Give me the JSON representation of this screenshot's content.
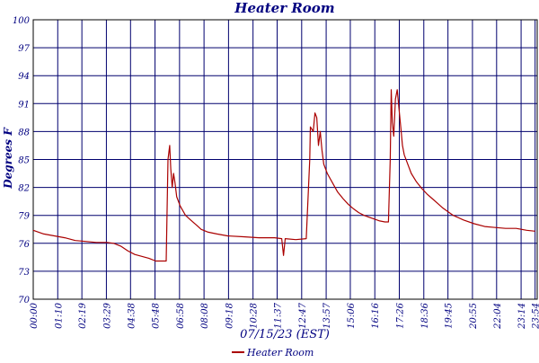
{
  "chart_data": {
    "type": "line",
    "title": "Heater Room",
    "xlabel": "07/15/23 (EST)",
    "ylabel": "Degrees F",
    "ylim": [
      70,
      100
    ],
    "y_ticks": [
      "70",
      "73",
      "76",
      "79",
      "82",
      "85",
      "88",
      "91",
      "94",
      "97",
      "100"
    ],
    "y_tick_values": [
      70,
      73,
      76,
      79,
      82,
      85,
      88,
      91,
      94,
      97,
      100
    ],
    "x_range_hours": [
      0,
      24
    ],
    "x_ticks": [
      "00:00",
      "01:10",
      "02:19",
      "03:29",
      "04:38",
      "05:48",
      "06:58",
      "08:08",
      "09:18",
      "10:28",
      "11:37",
      "12:47",
      "13:57",
      "15:06",
      "16:16",
      "17:26",
      "18:36",
      "19:45",
      "20:55",
      "22:04",
      "23:14",
      "23:54"
    ],
    "grid": true,
    "legend": "bottom-center",
    "colors": {
      "series": "#aa0000",
      "grid": "#00006e",
      "text": "#000080",
      "axis": "#000000"
    },
    "series": [
      {
        "name": "Heater Room",
        "x": [
          "00:00",
          "00:30",
          "01:00",
          "01:30",
          "02:00",
          "02:30",
          "03:00",
          "03:30",
          "03:50",
          "04:10",
          "04:30",
          "04:50",
          "05:10",
          "05:30",
          "05:50",
          "06:20",
          "06:25",
          "06:30",
          "06:33",
          "06:37",
          "06:41",
          "06:45",
          "06:50",
          "07:00",
          "07:15",
          "07:30",
          "07:45",
          "08:00",
          "08:20",
          "08:45",
          "09:15",
          "10:00",
          "10:45",
          "11:30",
          "11:50",
          "11:55",
          "12:00",
          "12:30",
          "13:00",
          "13:10",
          "13:12",
          "13:20",
          "13:25",
          "13:30",
          "13:35",
          "13:40",
          "13:45",
          "13:50",
          "14:00",
          "14:15",
          "14:30",
          "14:45",
          "15:00",
          "15:15",
          "15:30",
          "15:45",
          "16:00",
          "16:15",
          "16:30",
          "16:45",
          "16:55",
          "17:00",
          "17:03",
          "17:06",
          "17:10",
          "17:15",
          "17:20",
          "17:25",
          "17:30",
          "17:35",
          "17:40",
          "17:50",
          "18:00",
          "18:15",
          "18:30",
          "18:45",
          "19:00",
          "19:15",
          "19:30",
          "19:45",
          "20:00",
          "20:30",
          "21:00",
          "21:30",
          "22:00",
          "22:30",
          "23:00",
          "23:30",
          "23:54"
        ],
        "y": [
          77.4,
          77.0,
          76.8,
          76.6,
          76.3,
          76.2,
          76.1,
          76.1,
          76.0,
          75.7,
          75.2,
          74.8,
          74.6,
          74.4,
          74.1,
          74.1,
          85.0,
          86.5,
          84.0,
          82.0,
          83.5,
          82.5,
          81.0,
          80.0,
          79.0,
          78.5,
          78.0,
          77.5,
          77.2,
          77.0,
          76.8,
          76.7,
          76.6,
          76.6,
          76.5,
          74.7,
          76.5,
          76.4,
          76.5,
          85.0,
          88.5,
          88.0,
          90.0,
          89.5,
          86.5,
          88.0,
          86.0,
          84.5,
          83.5,
          82.5,
          81.5,
          80.8,
          80.2,
          79.7,
          79.3,
          79.0,
          78.8,
          78.6,
          78.4,
          78.3,
          78.3,
          85.0,
          92.5,
          89.0,
          87.5,
          91.5,
          92.5,
          90.5,
          88.5,
          86.5,
          85.5,
          84.5,
          83.5,
          82.6,
          81.9,
          81.3,
          80.8,
          80.3,
          79.8,
          79.4,
          79.0,
          78.5,
          78.1,
          77.8,
          77.7,
          77.6,
          77.6,
          77.4,
          77.3
        ]
      }
    ]
  }
}
